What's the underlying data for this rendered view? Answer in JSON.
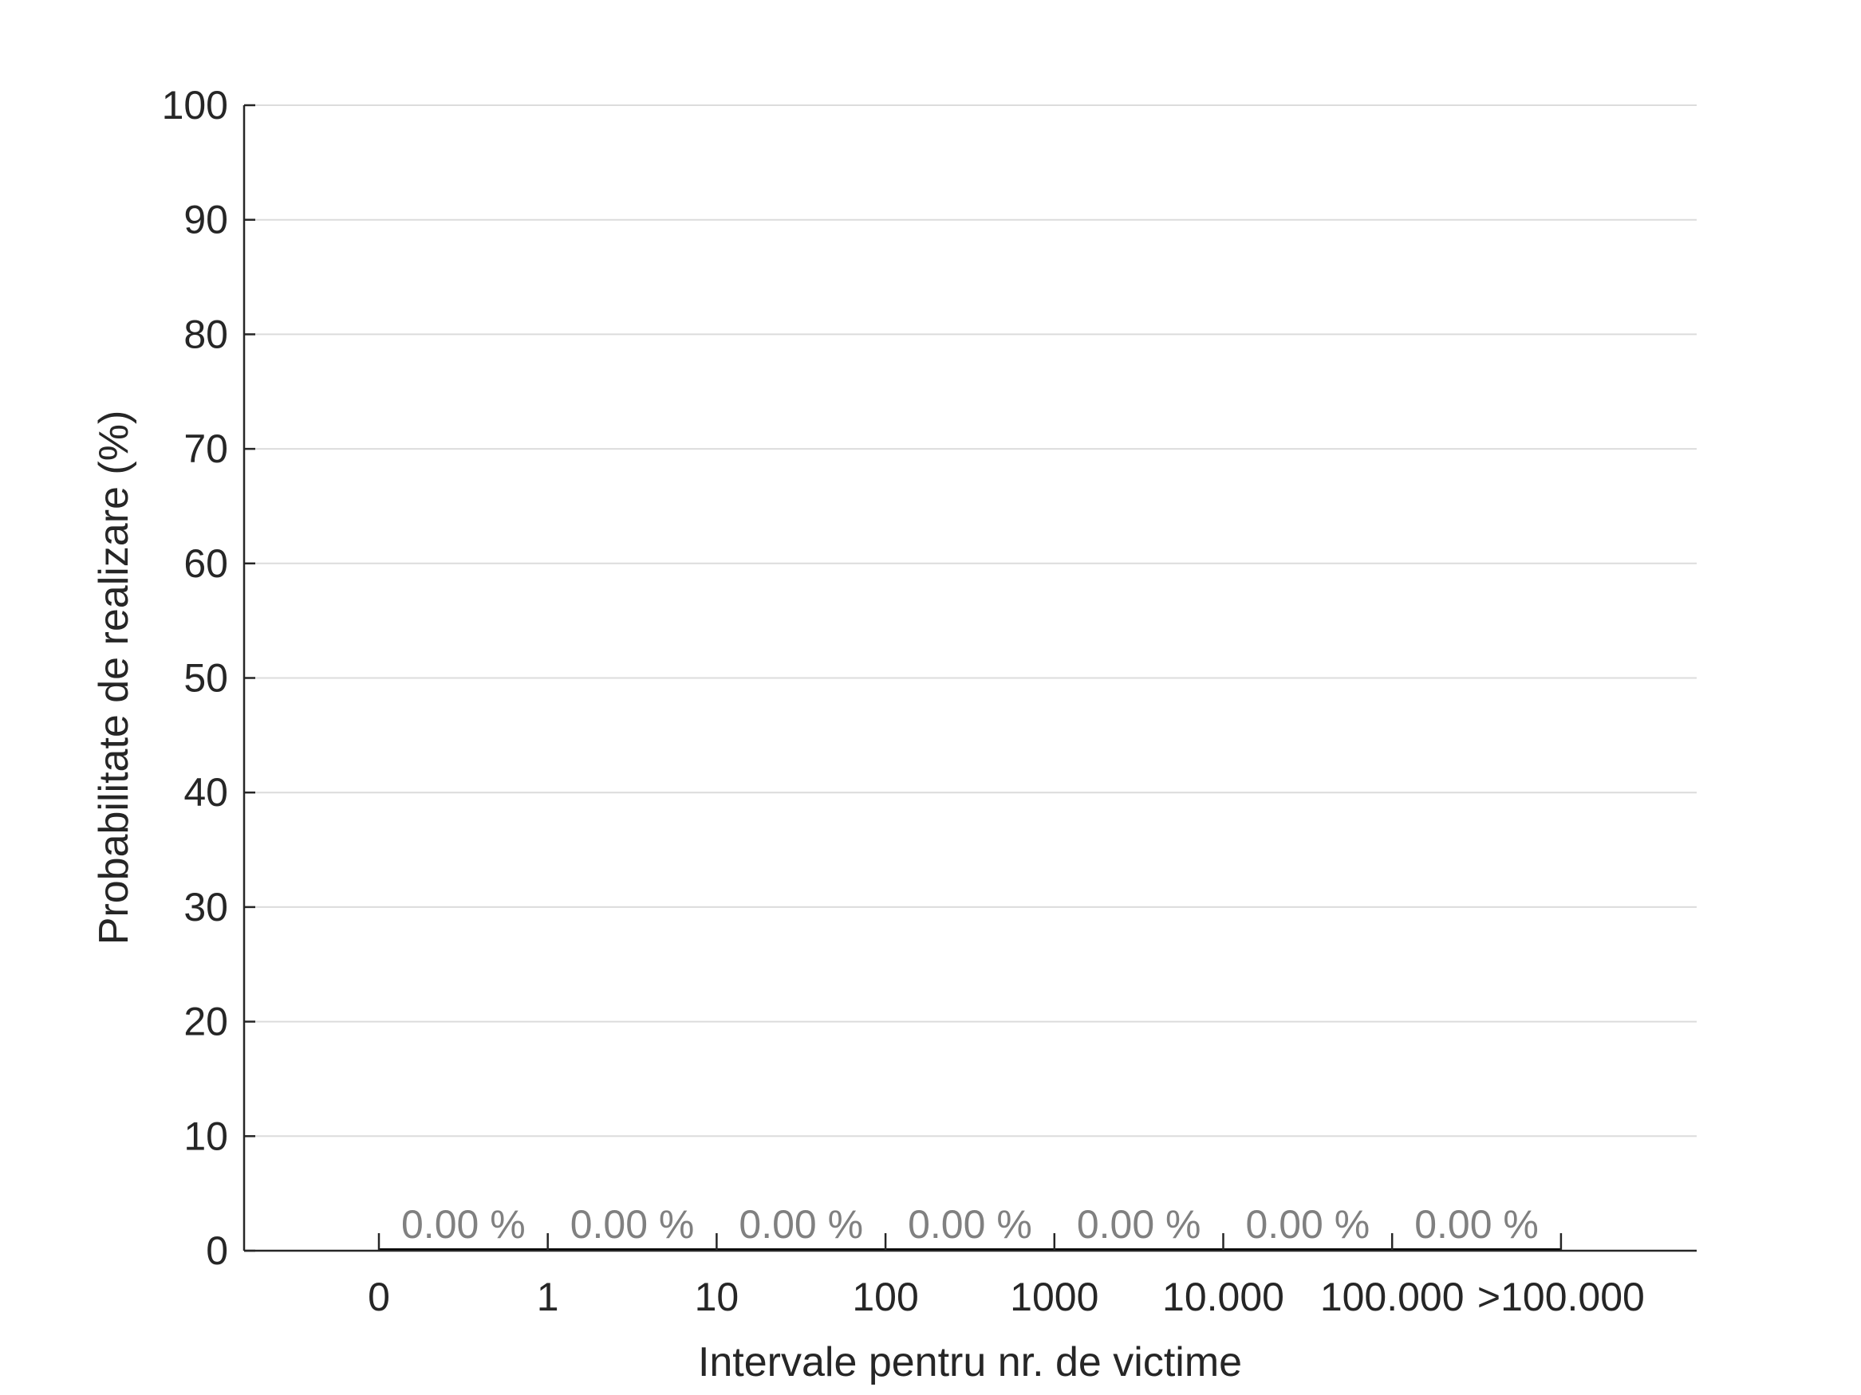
{
  "chart_data": {
    "type": "bar",
    "xlabel": "Intervale pentru nr. de victime",
    "ylabel": "Probabilitate de realizare (%)",
    "bin_edges": [
      "0",
      "1",
      "10",
      "100",
      "1000",
      "10.000",
      "100.000",
      ">100.000"
    ],
    "values": [
      0,
      0,
      0,
      0,
      0,
      0,
      0
    ],
    "data_labels": [
      "0.00 %",
      "0.00 %",
      "0.00 %",
      "0.00 %",
      "0.00 %",
      "0.00 %",
      "0.00 %"
    ],
    "ylim": [
      0,
      100
    ],
    "yticks": [
      "0",
      "10",
      "20",
      "30",
      "40",
      "50",
      "60",
      "70",
      "80",
      "90",
      "100"
    ],
    "grid": "horizontal",
    "colors": {
      "bar": "#000000",
      "grid": "#dcdcdc",
      "axis": "#262626",
      "data_label": "#808080"
    }
  }
}
